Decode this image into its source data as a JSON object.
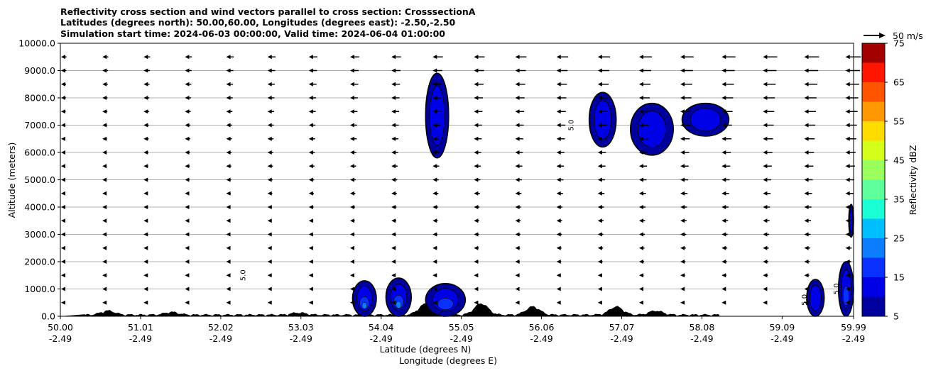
{
  "chart_data": {
    "type": "heatmap",
    "title_lines": [
      "Reflectivity cross section and wind vectors parallel to cross section: CrosssectionA",
      "Latitudes (degrees north): 50.00,60.00, Longitudes (degrees east): -2.50,-2.50",
      "Simulation start time: 2024-06-03 00:00:00, Valid time: 2024-06-04 01:00:00"
    ],
    "xlabel_line1": "Latitude (degrees N)",
    "xlabel_line2": "Longitude (degrees E)",
    "ylabel": "Altitude (meters)",
    "xlim": [
      50.0,
      59.99
    ],
    "ylim": [
      0,
      10000
    ],
    "x_ticks": [
      {
        "lat": "50.00",
        "lon": "-2.49",
        "value": 50.0
      },
      {
        "lat": "51.01",
        "lon": "-2.49",
        "value": 51.01
      },
      {
        "lat": "52.02",
        "lon": "-2.49",
        "value": 52.02
      },
      {
        "lat": "53.03",
        "lon": "-2.49",
        "value": 53.03
      },
      {
        "lat": "54.04",
        "lon": "-2.49",
        "value": 54.04
      },
      {
        "lat": "55.05",
        "lon": "-2.49",
        "value": 55.05
      },
      {
        "lat": "56.06",
        "lon": "-2.49",
        "value": 56.06
      },
      {
        "lat": "57.07",
        "lon": "-2.49",
        "value": 57.07
      },
      {
        "lat": "58.08",
        "lon": "-2.49",
        "value": 58.08
      },
      {
        "lat": "59.09",
        "lon": "-2.49",
        "value": 59.09
      },
      {
        "lat": "59.99",
        "lon": "-2.49",
        "value": 59.99
      }
    ],
    "y_ticks": [
      {
        "label": "0.0",
        "value": 0
      },
      {
        "label": "1000.0",
        "value": 1000
      },
      {
        "label": "2000.0",
        "value": 2000
      },
      {
        "label": "3000.0",
        "value": 3000
      },
      {
        "label": "4000.0",
        "value": 4000
      },
      {
        "label": "5000.0",
        "value": 5000
      },
      {
        "label": "6000.0",
        "value": 6000
      },
      {
        "label": "7000.0",
        "value": 7000
      },
      {
        "label": "8000.0",
        "value": 8000
      },
      {
        "label": "9000.0",
        "value": 9000
      },
      {
        "label": "10000.0",
        "value": 10000
      }
    ],
    "grid": "horizontal",
    "colorbar": {
      "label": "Reflectivity dBZ",
      "levels": [
        5,
        10,
        15,
        20,
        25,
        30,
        35,
        40,
        45,
        50,
        55,
        60,
        65,
        70,
        75
      ],
      "tick_labels": [
        "5",
        "15",
        "25",
        "35",
        "45",
        "55",
        "65",
        "75"
      ],
      "colors": [
        "#00009f",
        "#0000e6",
        "#0a30ff",
        "#0d7dff",
        "#00bfff",
        "#1affd4",
        "#5dff9a",
        "#9aff5d",
        "#d4ff1a",
        "#ffdb00",
        "#ff9700",
        "#ff5400",
        "#ff1500",
        "#a30000"
      ]
    },
    "quiver_key": {
      "label": "50 m/s",
      "speed": 50
    },
    "wind_rows_altitude": [
      500,
      1000,
      1500,
      2000,
      2500,
      3000,
      3500,
      4000,
      4500,
      5000,
      5500,
      6000,
      6500,
      7000,
      7500,
      8000,
      8500,
      9000,
      9500
    ],
    "wind_cols_latitude": [
      50.0,
      50.52,
      51.04,
      51.56,
      52.08,
      52.6,
      53.12,
      53.64,
      54.16,
      54.68,
      55.2,
      55.72,
      56.24,
      56.76,
      57.28,
      57.8,
      58.32,
      58.84,
      59.36,
      59.88
    ],
    "wind_speed_note_ms_by_altitude": [
      [
        500,
        4
      ],
      [
        2000,
        8
      ],
      [
        4000,
        12
      ],
      [
        6000,
        18
      ],
      [
        8000,
        24
      ],
      [
        9500,
        30
      ]
    ],
    "terrain_peaks": [
      {
        "lat": 50.6,
        "height_m": 150
      },
      {
        "lat": 51.4,
        "height_m": 100
      },
      {
        "lat": 53.0,
        "height_m": 80
      },
      {
        "lat": 54.6,
        "height_m": 400
      },
      {
        "lat": 55.3,
        "height_m": 420
      },
      {
        "lat": 55.95,
        "height_m": 300
      },
      {
        "lat": 57.0,
        "height_m": 300
      },
      {
        "lat": 57.5,
        "height_m": 150
      }
    ],
    "reflectivity_cells": [
      {
        "name": "upper-cell-55",
        "lat_min": 54.6,
        "lat_max": 54.89,
        "alt_min": 5800,
        "alt_max": 8900,
        "max_dbz": 10
      },
      {
        "name": "upper-cell-57a",
        "lat_min": 56.66,
        "lat_max": 57.0,
        "alt_min": 6200,
        "alt_max": 8200,
        "max_dbz": 10
      },
      {
        "name": "upper-cell-57b",
        "lat_min": 57.18,
        "lat_max": 57.72,
        "alt_min": 5900,
        "alt_max": 7800,
        "max_dbz": 10
      },
      {
        "name": "upper-cell-58",
        "lat_min": 57.83,
        "lat_max": 58.42,
        "alt_min": 6600,
        "alt_max": 7800,
        "max_dbz": 10
      },
      {
        "name": "low-cell-54a",
        "lat_min": 53.68,
        "lat_max": 53.98,
        "alt_min": 0,
        "alt_max": 1300,
        "max_dbz": 20
      },
      {
        "name": "low-cell-54b",
        "lat_min": 54.1,
        "lat_max": 54.42,
        "alt_min": 0,
        "alt_max": 1400,
        "max_dbz": 20
      },
      {
        "name": "low-cell-55",
        "lat_min": 54.6,
        "lat_max": 55.1,
        "alt_min": 0,
        "alt_max": 1200,
        "max_dbz": 15
      },
      {
        "name": "low-cell-59",
        "lat_min": 59.4,
        "lat_max": 59.62,
        "alt_min": 0,
        "alt_max": 1350,
        "max_dbz": 10
      },
      {
        "name": "edge-cell-60-high",
        "lat_min": 59.93,
        "lat_max": 59.99,
        "alt_min": 2900,
        "alt_max": 4100,
        "max_dbz": 10
      },
      {
        "name": "edge-cell-60-low",
        "lat_min": 59.8,
        "lat_max": 59.99,
        "alt_min": 0,
        "alt_max": 2000,
        "max_dbz": 15
      }
    ],
    "contour_labels": [
      {
        "text": "5.0",
        "lat": 52.33,
        "alt": 1500
      },
      {
        "text": "5.0",
        "lat": 56.46,
        "alt": 7000
      },
      {
        "text": "5.0",
        "lat": 59.4,
        "alt": 600
      },
      {
        "text": "5.0",
        "lat": 59.8,
        "alt": 1000
      }
    ]
  }
}
